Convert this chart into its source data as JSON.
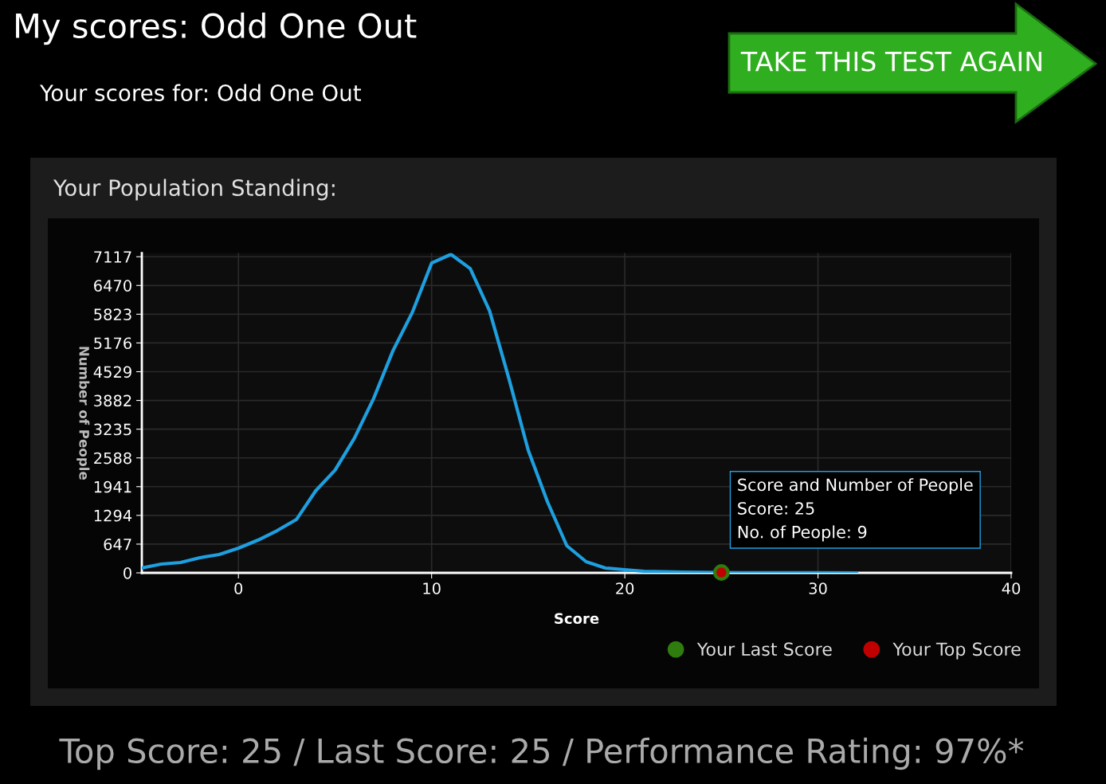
{
  "chart_data": {
    "type": "line",
    "title": "My scores: Odd One Out",
    "subtitle": "Your scores for: Odd One Out",
    "annotations": [
      "TAKE THIS TEST AGAIN",
      "Your Population Standing:",
      {
        "text": "Score and Number of People\nScore: 25\nNo. of People: 9",
        "x": 25,
        "y": 9
      },
      "Top Score: 25 / Last Score: 25 / Performance Rating: 97%*"
    ],
    "xlabel": "Score",
    "ylabel": "Number of People",
    "xlim": [
      -5,
      40
    ],
    "xticks": [
      0,
      10,
      20,
      30,
      40
    ],
    "ylim": [
      0,
      7200
    ],
    "yticks": [
      0,
      647,
      1294,
      1941,
      2588,
      3235,
      3882,
      4529,
      5176,
      5823,
      6470,
      7117
    ],
    "grid": true,
    "legend": "bottom right",
    "series": [
      {
        "color": "#1e9fe0",
        "x": [
          -5,
          -4,
          -3,
          -2,
          -1,
          0,
          1,
          2,
          3,
          4,
          5,
          6,
          7,
          8,
          9,
          10,
          11,
          12,
          13,
          14,
          15,
          16,
          17,
          18,
          19,
          20,
          21,
          22,
          23,
          24,
          25,
          26,
          28,
          30,
          32
        ],
        "values": [
          108,
          197,
          233,
          341,
          412,
          556,
          735,
          950,
          1201,
          1847,
          2313,
          3030,
          3927,
          5002,
          5863,
          6975,
          7170,
          6850,
          5900,
          4375,
          2761,
          1596,
          610,
          251,
          108,
          72,
          36,
          27,
          18,
          12,
          9,
          5,
          3,
          1,
          0
        ]
      },
      {
        "type": "scatter",
        "name": "Your Last Score",
        "color": "#2e7d0e",
        "x": [
          25
        ],
        "values": [
          9
        ]
      },
      {
        "type": "scatter",
        "name": "Your Top Score",
        "color": "#c00000",
        "x": [
          25
        ],
        "values": [
          9
        ]
      }
    ]
  }
}
